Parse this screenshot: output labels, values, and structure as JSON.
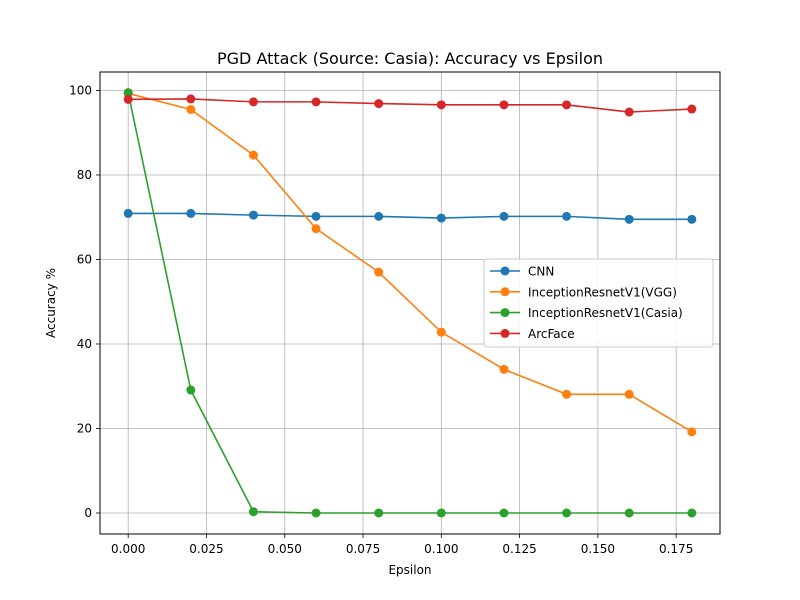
{
  "chart_data": {
    "type": "line",
    "title": "PGD Attack (Source: Casia): Accuracy vs Epsilon",
    "xlabel": "Epsilon",
    "ylabel": "Accuracy %",
    "x": [
      0.0,
      0.02,
      0.04,
      0.06,
      0.08,
      0.1,
      0.12,
      0.14,
      0.16,
      0.18
    ],
    "xlim": [
      -0.009,
      0.189
    ],
    "ylim": [
      -4.97,
      104.37
    ],
    "xticks": [
      "0.000",
      "0.025",
      "0.050",
      "0.075",
      "0.100",
      "0.125",
      "0.150",
      "0.175"
    ],
    "xtick_values": [
      0.0,
      0.025,
      0.05,
      0.075,
      0.1,
      0.125,
      0.15,
      0.175
    ],
    "yticks": [
      "0",
      "20",
      "40",
      "60",
      "80",
      "100"
    ],
    "ytick_values": [
      0,
      20,
      40,
      60,
      80,
      100
    ],
    "grid": true,
    "legend_position": "center-right",
    "series": [
      {
        "name": "CNN",
        "color": "#1f77b4",
        "values": [
          70.9,
          70.9,
          70.5,
          70.2,
          70.2,
          69.8,
          70.2,
          70.2,
          69.5,
          69.5
        ]
      },
      {
        "name": "InceptionResnetV1(VGG)",
        "color": "#ff7f0e",
        "values": [
          99.3,
          95.5,
          84.7,
          67.3,
          57.0,
          42.8,
          34.0,
          28.1,
          28.1,
          19.2
        ]
      },
      {
        "name": "InceptionResnetV1(Casia)",
        "color": "#2ca02c",
        "values": [
          99.5,
          29.1,
          0.3,
          0.0,
          0.0,
          0.0,
          0.0,
          0.0,
          0.0,
          0.0
        ]
      },
      {
        "name": "ArcFace",
        "color": "#d62728",
        "values": [
          97.9,
          98.0,
          97.3,
          97.3,
          96.9,
          96.6,
          96.6,
          96.6,
          94.9,
          95.6
        ]
      }
    ]
  }
}
